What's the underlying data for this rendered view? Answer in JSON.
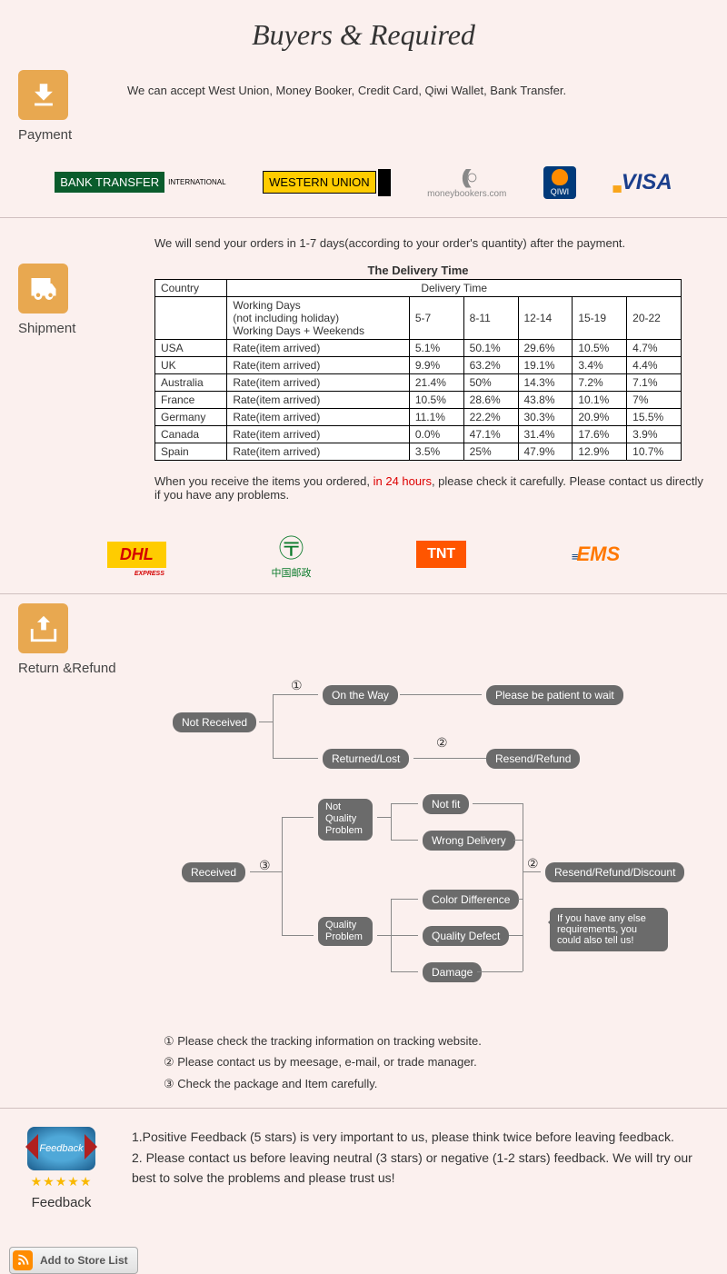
{
  "header": {
    "title": "Buyers & Required"
  },
  "payment": {
    "label": "Payment",
    "text": "We can accept West Union, Money Booker, Credit Card, Qiwi Wallet, Bank Transfer.",
    "logos": {
      "bank": "BANK TRANSFER",
      "bank_sub": "INTERNATIONAL",
      "wu": "WESTERN UNION",
      "mb": "moneybookers.com",
      "qiwi": "QIWI",
      "visa": "VISA"
    }
  },
  "shipment": {
    "label": "Shipment",
    "intro": "We will send your orders in 1-7 days(according to your order's quantity) after the payment.",
    "table_title": "The Delivery Time",
    "columns": {
      "country": "Country",
      "delivery_time": "Delivery Time",
      "working_days": "Working Days\n(not including holiday)\nWorking Days + Weekends",
      "ranges": [
        "5-7",
        "8-11",
        "12-14",
        "15-19",
        "20-22"
      ]
    },
    "rows": [
      {
        "country": "USA",
        "label": "Rate(item arrived)",
        "vals": [
          "5.1%",
          "50.1%",
          "29.6%",
          "10.5%",
          "4.7%"
        ]
      },
      {
        "country": "UK",
        "label": "Rate(item arrived)",
        "vals": [
          "9.9%",
          "63.2%",
          "19.1%",
          "3.4%",
          "4.4%"
        ]
      },
      {
        "country": "Australia",
        "label": "Rate(item arrived)",
        "vals": [
          "21.4%",
          "50%",
          "14.3%",
          "7.2%",
          "7.1%"
        ]
      },
      {
        "country": "France",
        "label": "Rate(item arrived)",
        "vals": [
          "10.5%",
          "28.6%",
          "43.8%",
          "10.1%",
          "7%"
        ]
      },
      {
        "country": "Germany",
        "label": "Rate(item arrived)",
        "vals": [
          "11.1%",
          "22.2%",
          "30.3%",
          "20.9%",
          "15.5%"
        ]
      },
      {
        "country": "Canada",
        "label": "Rate(item arrived)",
        "vals": [
          "0.0%",
          "47.1%",
          "31.4%",
          "17.6%",
          "3.9%"
        ]
      },
      {
        "country": "Spain",
        "label": "Rate(item arrived)",
        "vals": [
          "3.5%",
          "25%",
          "47.9%",
          "12.9%",
          "10.7%"
        ]
      }
    ],
    "note_pre": "When you receive the items you ordered, ",
    "note_red": "in 24 hours",
    "note_post": ", please check it carefully. Please contact us directly if you have any problems.",
    "carriers": {
      "dhl": "DHL",
      "dhl_sub": "EXPRESS",
      "cp": "中国邮政",
      "tnt": "TNT",
      "ems": "EMS"
    }
  },
  "return": {
    "label": "Return &Refund",
    "flow": {
      "not_received": "Not Received",
      "on_the_way": "On the Way",
      "patient": "Please be patient to wait",
      "returned_lost": "Returned/Lost",
      "resend_refund": "Resend/Refund",
      "received": "Received",
      "not_quality": "Not Quality Problem",
      "quality": "Quality Problem",
      "not_fit": "Not fit",
      "wrong_delivery": "Wrong Delivery",
      "color_diff": "Color Difference",
      "quality_defect": "Quality Defect",
      "damage": "Damage",
      "resend_discount": "Resend/Refund/Discount",
      "bubble": "If you have any else requirements, you could also tell us!",
      "n1": "①",
      "n2": "②",
      "n3": "③"
    },
    "notes": [
      "① Please check the tracking information on tracking website.",
      "② Please contact us by meesage, e-mail, or trade manager.",
      "③ Check the package and Item carefully."
    ]
  },
  "feedback": {
    "label": "Feedback",
    "ribbon": "Feedback",
    "lines": [
      "1.Positive Feedback (5 stars) is very important to us, please think twice before leaving feedback.",
      "2. Please contact us before leaving neutral (3 stars) or negative (1-2 stars) feedback. We will try our best to solve the problems and please trust us!"
    ]
  },
  "footer": {
    "add_store": "Add to Store List"
  }
}
